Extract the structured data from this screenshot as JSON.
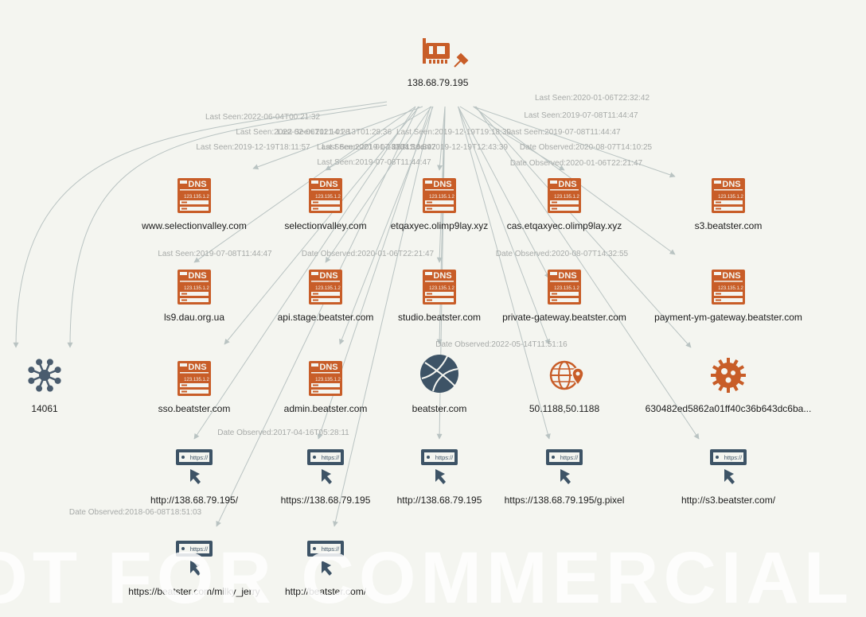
{
  "colors": {
    "dns": "#c85d28",
    "ip": "#c85d28",
    "url": "#3d5366",
    "asn": "#4a5c6e",
    "domain": "#3d5366",
    "geo": "#c85d28",
    "hash": "#c85d28",
    "edge": "#b9c3c2",
    "edge_label": "#a7aaa8",
    "background": "#f4f5f0"
  },
  "root": {
    "id": "ip-root",
    "label": "138.68.79.195",
    "icon": "network-card-pinned-icon"
  },
  "nodes": [
    {
      "id": "n1",
      "label": "www.selectionvalley.com",
      "icon": "dns-server-icon"
    },
    {
      "id": "n2",
      "label": "selectionvalley.com",
      "icon": "dns-server-icon"
    },
    {
      "id": "n3",
      "label": "etqaxyec.olimp9lay.xyz",
      "icon": "dns-server-icon"
    },
    {
      "id": "n4",
      "label": "cas.etqaxyec.olimp9lay.xyz",
      "icon": "dns-server-icon"
    },
    {
      "id": "n5",
      "label": "s3.beatster.com",
      "icon": "dns-server-icon"
    },
    {
      "id": "n6",
      "label": "ls9.dau.org.ua",
      "icon": "dns-server-icon"
    },
    {
      "id": "n7",
      "label": "api.stage.beatster.com",
      "icon": "dns-server-icon"
    },
    {
      "id": "n8",
      "label": "studio.beatster.com",
      "icon": "dns-server-icon"
    },
    {
      "id": "n9",
      "label": "private-gateway.beatster.com",
      "icon": "dns-server-icon"
    },
    {
      "id": "n10",
      "label": "payment-ym-gateway.beatster.com",
      "icon": "dns-server-icon"
    },
    {
      "id": "n11",
      "label": "14061",
      "icon": "asn-hub-icon"
    },
    {
      "id": "n12",
      "label": "sso.beatster.com",
      "icon": "dns-server-icon"
    },
    {
      "id": "n13",
      "label": "admin.beatster.com",
      "icon": "dns-server-icon"
    },
    {
      "id": "n14",
      "label": "beatster.com",
      "icon": "globe-domain-icon"
    },
    {
      "id": "n15",
      "label": "50.1188,50.1188",
      "icon": "geo-location-icon"
    },
    {
      "id": "n16",
      "label": "630482ed5862a01ff40c36b643dc6ba...",
      "icon": "malware-hash-icon"
    },
    {
      "id": "n17",
      "label": "http://138.68.79.195/",
      "icon": "url-link-icon"
    },
    {
      "id": "n18",
      "label": "https://138.68.79.195",
      "icon": "url-link-icon"
    },
    {
      "id": "n19",
      "label": "http://138.68.79.195",
      "icon": "url-link-icon"
    },
    {
      "id": "n20",
      "label": "https://138.68.79.195/g.pixel",
      "icon": "url-link-icon"
    },
    {
      "id": "n21",
      "label": "http://s3.beatster.com/",
      "icon": "url-link-icon"
    },
    {
      "id": "n22",
      "label": "https://beatster.com/milky_jerry",
      "icon": "url-link-icon"
    },
    {
      "id": "n23",
      "label": "http://beatster.com/",
      "icon": "url-link-icon"
    }
  ],
  "dns_badge_text": "DNS",
  "dns_ip_text": "123.135.1.2",
  "url_bar_text": "https://",
  "edge_labels": [
    "Last Seen:2020-01-06T22:32:42",
    "Last Seen:2019-07-08T11:44:47",
    "Last Seen:2022-06-04T00:21:32",
    "Last Seen:2022-02-06T11:14:28",
    "Last Seen:2021-01-13T01:28:36",
    "Last Seen:2019-12-19T18:11:57",
    "Last Seen:2019-07-08T11:44:47",
    "Last Seen:2019-12-19T19:18:39",
    "Last Seen:2021-01-13T04:10:39",
    "Last Seen:2019-12-19T12:43:39",
    "Date Observed:2020-08-07T14:10:25",
    "Last Seen:2019-07-08T11:44:47",
    "Date Observed:2020-01-06T22:21:47",
    "Last Seen:2019-07-08T11:44:47",
    "Date Observed:2020-01-06T22:21:47",
    "Date Observed:2020-08-07T14:32:55",
    "Last Seen:2019-07-08T11:44:47",
    "Date Observed:2022-05-14T11:51:16",
    "Date Observed:2017-04-16T05:28:11",
    "Date Observed:2018-06-08T18:51:03"
  ],
  "watermark": "NOT FOR COMMERCIAL USE"
}
